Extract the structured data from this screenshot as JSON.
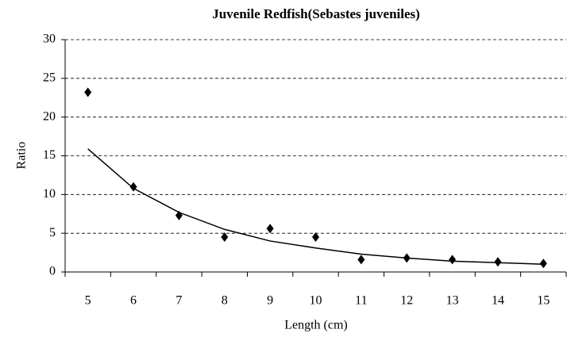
{
  "chart_data": {
    "type": "scatter",
    "title": "Juvenile Redfish(Sebastes juveniles)",
    "x_label": "Length (cm)",
    "y_label": "Ratio",
    "categories": [
      5,
      6,
      7,
      8,
      9,
      10,
      11,
      12,
      13,
      14,
      15
    ],
    "ylim": [
      0,
      30
    ],
    "yticks": [
      0,
      5,
      10,
      15,
      20,
      25,
      30
    ],
    "grid": true,
    "series": [
      {
        "type": "scatter",
        "color": "#000000",
        "values": [
          23.2,
          11,
          7.3,
          4.5,
          5.6,
          4.5,
          1.6,
          1.8,
          1.6,
          1.3,
          1.1
        ]
      },
      {
        "type": "line",
        "color": "#000000",
        "values": [
          15.9,
          10.8,
          7.7,
          5.5,
          4.0,
          3.1,
          2.3,
          1.8,
          1.4,
          1.2,
          1.0
        ]
      }
    ]
  }
}
